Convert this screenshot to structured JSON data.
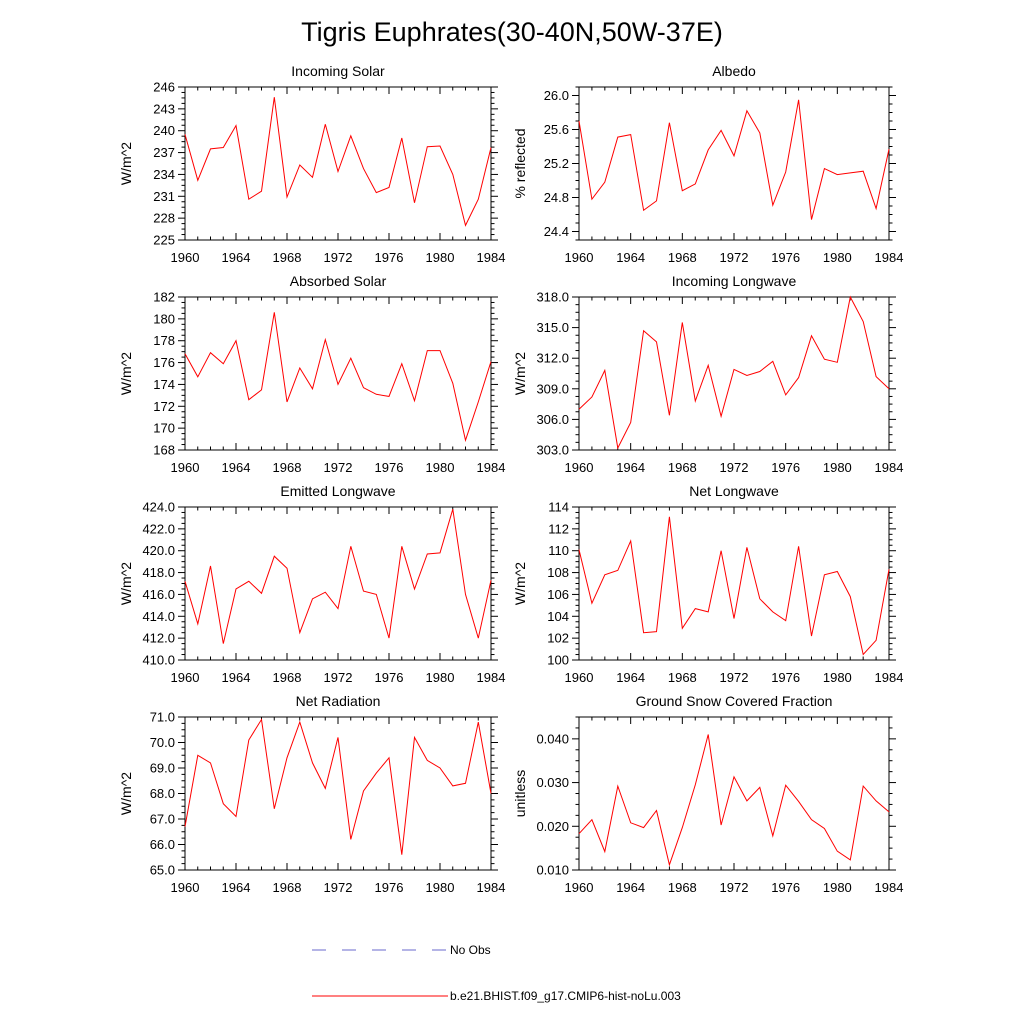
{
  "title": "Tigris Euphrates(30-40N,50W-37E)",
  "colors": {
    "model": "#ff0000",
    "obs": "#6a6acd"
  },
  "legend": {
    "obs_label": "No Obs",
    "model_label": "b.e21.BHIST.f09_g17.CMIP6-hist-noLu.003"
  },
  "chart_data": [
    {
      "type": "line",
      "title": "Incoming Solar",
      "ylabel": "W/m^2",
      "xlim": [
        1960,
        1984
      ],
      "ylim": [
        225,
        246
      ],
      "xticks": [
        "1960",
        "1964",
        "1968",
        "1972",
        "1976",
        "1980",
        "1984"
      ],
      "yticks": [
        "225",
        "228",
        "231",
        "234",
        "237",
        "240",
        "243",
        "246"
      ],
      "x": [
        1960,
        1961,
        1962,
        1963,
        1964,
        1965,
        1966,
        1967,
        1968,
        1969,
        1970,
        1971,
        1972,
        1973,
        1974,
        1975,
        1976,
        1977,
        1978,
        1979,
        1980,
        1981,
        1982,
        1983,
        1984
      ],
      "series": [
        {
          "values": [
            239.5,
            233.2,
            237.5,
            237.7,
            240.7,
            230.6,
            231.7,
            244.6,
            230.9,
            235.3,
            233.6,
            240.9,
            234.4,
            239.3,
            234.8,
            231.5,
            232.2,
            239.0,
            230.1,
            237.8,
            237.9,
            234.0,
            227.0,
            230.6,
            237.7
          ]
        }
      ]
    },
    {
      "type": "line",
      "title": "Albedo",
      "ylabel": "% reflected",
      "xlim": [
        1960,
        1984
      ],
      "ylim": [
        24.3,
        26.1
      ],
      "xticks": [
        "1960",
        "1964",
        "1968",
        "1972",
        "1976",
        "1980",
        "1984"
      ],
      "yticks": [
        "24.4",
        "24.8",
        "25.2",
        "25.6",
        "26.0"
      ],
      "x": [
        1960,
        1961,
        1962,
        1963,
        1964,
        1965,
        1966,
        1967,
        1968,
        1969,
        1970,
        1971,
        1972,
        1973,
        1974,
        1975,
        1976,
        1977,
        1978,
        1979,
        1980,
        1981,
        1982,
        1983,
        1984
      ],
      "series": [
        {
          "values": [
            25.7,
            24.78,
            24.98,
            25.51,
            25.54,
            24.65,
            24.76,
            25.68,
            24.88,
            24.96,
            25.36,
            25.59,
            25.29,
            25.82,
            25.56,
            24.71,
            25.1,
            25.95,
            24.54,
            25.14,
            25.07,
            25.09,
            25.11,
            24.67,
            25.37
          ]
        }
      ]
    },
    {
      "type": "line",
      "title": "Absorbed Solar",
      "ylabel": "W/m^2",
      "xlim": [
        1960,
        1984
      ],
      "ylim": [
        168,
        182
      ],
      "xticks": [
        "1960",
        "1964",
        "1968",
        "1972",
        "1976",
        "1980",
        "1984"
      ],
      "yticks": [
        "168",
        "170",
        "172",
        "174",
        "176",
        "178",
        "180",
        "182"
      ],
      "x": [
        1960,
        1961,
        1962,
        1963,
        1964,
        1965,
        1966,
        1967,
        1968,
        1969,
        1970,
        1971,
        1972,
        1973,
        1974,
        1975,
        1976,
        1977,
        1978,
        1979,
        1980,
        1981,
        1982,
        1983,
        1984
      ],
      "series": [
        {
          "values": [
            176.8,
            174.7,
            176.9,
            175.9,
            178.0,
            172.6,
            173.5,
            180.6,
            172.4,
            175.5,
            173.6,
            178.1,
            174.0,
            176.4,
            173.7,
            173.1,
            172.9,
            175.9,
            172.5,
            177.1,
            177.1,
            174.1,
            168.9,
            172.4,
            176.1
          ]
        }
      ]
    },
    {
      "type": "line",
      "title": "Incoming Longwave",
      "ylabel": "W/m^2",
      "xlim": [
        1960,
        1984
      ],
      "ylim": [
        303.0,
        318.0
      ],
      "xticks": [
        "1960",
        "1964",
        "1968",
        "1972",
        "1976",
        "1980",
        "1984"
      ],
      "yticks": [
        "303.0",
        "306.0",
        "309.0",
        "312.0",
        "315.0",
        "318.0"
      ],
      "x": [
        1960,
        1961,
        1962,
        1963,
        1964,
        1965,
        1966,
        1967,
        1968,
        1969,
        1970,
        1971,
        1972,
        1973,
        1974,
        1975,
        1976,
        1977,
        1978,
        1979,
        1980,
        1981,
        1982,
        1983,
        1984
      ],
      "series": [
        {
          "values": [
            307.0,
            308.2,
            310.8,
            303.2,
            305.7,
            314.7,
            313.6,
            306.4,
            315.5,
            307.8,
            311.3,
            306.3,
            310.9,
            310.3,
            310.7,
            311.7,
            308.4,
            310.1,
            314.2,
            311.9,
            311.6,
            318.0,
            315.6,
            310.2,
            309.0
          ]
        }
      ]
    },
    {
      "type": "line",
      "title": "Emitted Longwave",
      "ylabel": "W/m^2",
      "xlim": [
        1960,
        1984
      ],
      "ylim": [
        410.0,
        424.0
      ],
      "xticks": [
        "1960",
        "1964",
        "1968",
        "1972",
        "1976",
        "1980",
        "1984"
      ],
      "yticks": [
        "410.0",
        "412.0",
        "414.0",
        "416.0",
        "418.0",
        "420.0",
        "422.0",
        "424.0"
      ],
      "x": [
        1960,
        1961,
        1962,
        1963,
        1964,
        1965,
        1966,
        1967,
        1968,
        1969,
        1970,
        1971,
        1972,
        1973,
        1974,
        1975,
        1976,
        1977,
        1978,
        1979,
        1980,
        1981,
        1982,
        1983,
        1984
      ],
      "series": [
        {
          "values": [
            417.2,
            413.3,
            418.6,
            411.5,
            416.5,
            417.2,
            416.1,
            419.5,
            418.4,
            412.5,
            415.6,
            416.2,
            414.7,
            420.4,
            416.3,
            416.0,
            412.0,
            420.4,
            416.5,
            419.7,
            419.8,
            423.8,
            416.0,
            412.0,
            417.3
          ]
        }
      ]
    },
    {
      "type": "line",
      "title": "Net Longwave",
      "ylabel": "W/m^2",
      "xlim": [
        1960,
        1984
      ],
      "ylim": [
        100,
        114
      ],
      "xticks": [
        "1960",
        "1964",
        "1968",
        "1972",
        "1976",
        "1980",
        "1984"
      ],
      "yticks": [
        "100",
        "102",
        "104",
        "106",
        "108",
        "110",
        "112",
        "114"
      ],
      "x": [
        1960,
        1961,
        1962,
        1963,
        1964,
        1965,
        1966,
        1967,
        1968,
        1969,
        1970,
        1971,
        1972,
        1973,
        1974,
        1975,
        1976,
        1977,
        1978,
        1979,
        1980,
        1981,
        1982,
        1983,
        1984
      ],
      "series": [
        {
          "values": [
            110.1,
            105.2,
            107.8,
            108.2,
            110.9,
            102.5,
            102.6,
            113.1,
            102.9,
            104.7,
            104.4,
            110.0,
            103.8,
            110.3,
            105.6,
            104.4,
            103.6,
            110.4,
            102.2,
            107.8,
            108.1,
            105.8,
            100.5,
            101.8,
            108.3
          ]
        }
      ]
    },
    {
      "type": "line",
      "title": "Net Radiation",
      "ylabel": "W/m^2",
      "xlim": [
        1960,
        1984
      ],
      "ylim": [
        65.0,
        71.0
      ],
      "xticks": [
        "1960",
        "1964",
        "1968",
        "1972",
        "1976",
        "1980",
        "1984"
      ],
      "yticks": [
        "65.0",
        "66.0",
        "67.0",
        "68.0",
        "69.0",
        "70.0",
        "71.0"
      ],
      "x": [
        1960,
        1961,
        1962,
        1963,
        1964,
        1965,
        1966,
        1967,
        1968,
        1969,
        1970,
        1971,
        1972,
        1973,
        1974,
        1975,
        1976,
        1977,
        1978,
        1979,
        1980,
        1981,
        1982,
        1983,
        1984
      ],
      "series": [
        {
          "values": [
            66.7,
            69.5,
            69.2,
            67.6,
            67.1,
            70.1,
            70.9,
            67.4,
            69.4,
            70.8,
            69.2,
            68.2,
            70.2,
            66.2,
            68.1,
            68.8,
            69.4,
            65.6,
            70.2,
            69.3,
            69.0,
            68.3,
            68.4,
            70.8,
            68.0
          ]
        }
      ]
    },
    {
      "type": "line",
      "title": "Ground Snow Covered Fraction",
      "ylabel": "unitless",
      "xlim": [
        1960,
        1984
      ],
      "ylim": [
        0.01,
        0.045
      ],
      "xticks": [
        "1960",
        "1964",
        "1968",
        "1972",
        "1976",
        "1980",
        "1984"
      ],
      "yticks": [
        "0.010",
        "0.020",
        "0.030",
        "0.040"
      ],
      "x": [
        1960,
        1961,
        1962,
        1963,
        1964,
        1965,
        1966,
        1967,
        1968,
        1969,
        1970,
        1971,
        1972,
        1973,
        1974,
        1975,
        1976,
        1977,
        1978,
        1979,
        1980,
        1981,
        1982,
        1983,
        1984
      ],
      "series": [
        {
          "values": [
            0.0183,
            0.0215,
            0.0142,
            0.0292,
            0.0208,
            0.0197,
            0.0236,
            0.0112,
            0.0197,
            0.0295,
            0.041,
            0.0203,
            0.0313,
            0.0258,
            0.0289,
            0.0178,
            0.0294,
            0.0257,
            0.0215,
            0.0195,
            0.0143,
            0.0123,
            0.0292,
            0.0258,
            0.0233
          ]
        }
      ]
    }
  ]
}
